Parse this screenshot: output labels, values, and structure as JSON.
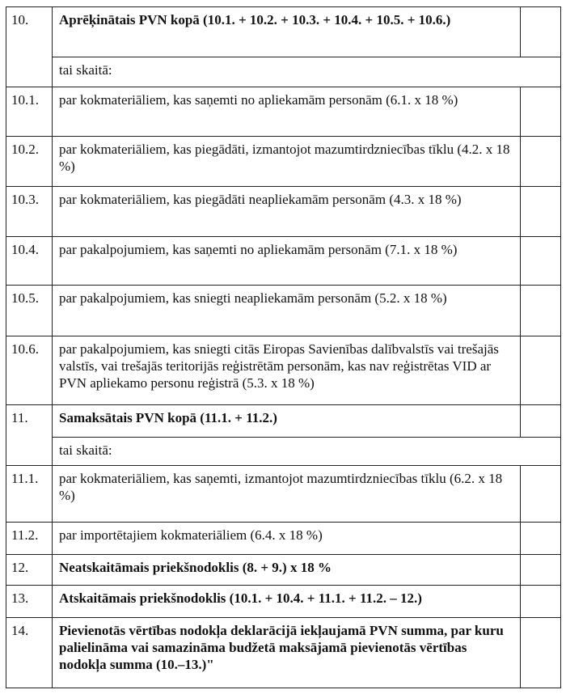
{
  "rows": [
    {
      "num": "10.",
      "text": "Aprēķinātais PVN kopā (10.1. + 10.2. + 10.3. + 10.4. + 10.5. + 10.6.)",
      "bold": true,
      "sub": "tai skaitā:"
    },
    {
      "num": "10.1.",
      "text": "par kokmateriāliem, kas saņemti no apliekamām personām (6.1. x 18 %)"
    },
    {
      "num": "10.2.",
      "text": "par kokmateriāliem, kas piegādāti, izmantojot mazumtirdzniecības tīklu (4.2. x 18 %)"
    },
    {
      "num": "10.3.",
      "text": "par kokmateriāliem, kas piegādāti neapliekamām personām (4.3. x 18 %)"
    },
    {
      "num": "10.4.",
      "text": "par pakalpojumiem, kas saņemti no apliekamām personām (7.1. x 18 %)"
    },
    {
      "num": "10.5.",
      "text": "par pakalpojumiem, kas sniegti neapliekamām personām (5.2. x 18 %)"
    },
    {
      "num": "10.6.",
      "text": "par pakalpojumiem, kas sniegti citās Eiropas Savienības dalībvalstīs vai trešajās valstīs, vai trešajās  teritorijās reģistrētām personām, kas nav reģistrētas VID ar PVN apliekamo personu reģistrā (5.3. x 18 %)"
    },
    {
      "num": "11.",
      "text": "Samaksātais PVN kopā (11.1. + 11.2.)",
      "bold": true,
      "sub": "tai skaitā:"
    },
    {
      "num": "11.1.",
      "text": "par kokmateriāliem, kas saņemti, izmantojot mazumtirdzniecības tīklu (6.2. x 18 %)"
    },
    {
      "num": "11.2.",
      "text": "par importētajiem kokmateriāliem (6.4. x 18 %)"
    },
    {
      "num": "12.",
      "text": "Neatskaitāmais priekšnodoklis (8. + 9.) x 18 %",
      "bold": true
    },
    {
      "num": "13.",
      "text": "Atskaitāmais priekšnodoklis (10.1. + 10.4. + 11.1. + 11.2. – 12.)",
      "bold": true
    },
    {
      "num": "14.",
      "text": "Pievienotās vērtības nodokļa deklarācijā iekļaujamā PVN summa, par kuru palielināma vai samazināma budžetā maksājamā pievienotās vērtības nodokļa summa (10.–13.)\"",
      "bold": true
    }
  ]
}
